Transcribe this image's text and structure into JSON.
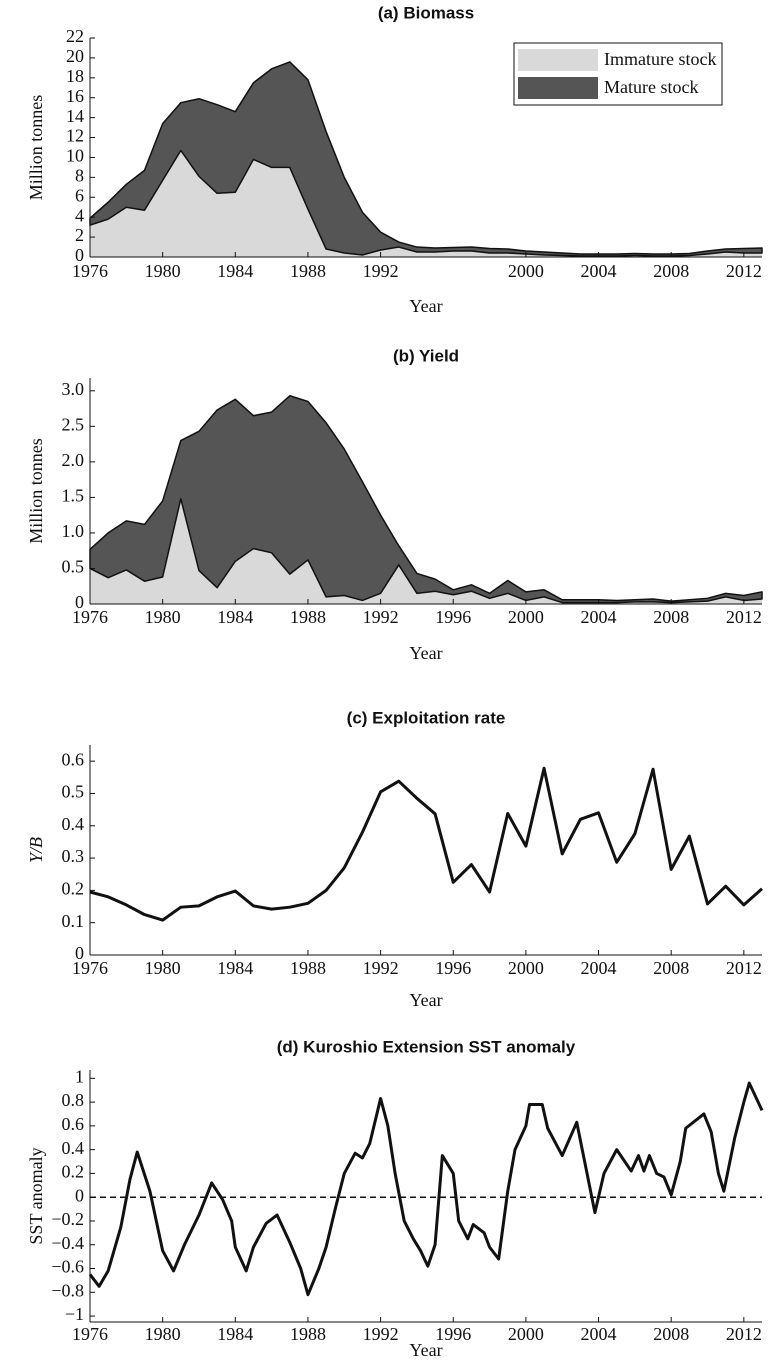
{
  "chart_data": [
    {
      "type": "stacked_area",
      "title": "(a) Biomass",
      "x_label": "Year",
      "y_label": "Million tonnes",
      "x": [
        1976,
        1977,
        1978,
        1979,
        1980,
        1981,
        1982,
        1983,
        1984,
        1985,
        1986,
        1987,
        1988,
        1989,
        1990,
        1991,
        1992,
        1993,
        1994,
        1995,
        1996,
        1997,
        1998,
        1999,
        2000,
        2001,
        2002,
        2003,
        2004,
        2005,
        2006,
        2007,
        2008,
        2009,
        2010,
        2011,
        2012,
        2013
      ],
      "series": [
        {
          "name": "Immature stock",
          "color": "#d9d9d9",
          "values": [
            3.2,
            3.8,
            5.0,
            4.7,
            7.7,
            10.7,
            8.1,
            6.4,
            6.5,
            9.8,
            9.0,
            9.0,
            4.8,
            0.8,
            0.4,
            0.2,
            0.7,
            1.0,
            0.5,
            0.5,
            0.6,
            0.6,
            0.4,
            0.4,
            0.3,
            0.2,
            0.15,
            0.1,
            0.1,
            0.1,
            0.15,
            0.1,
            0.1,
            0.15,
            0.3,
            0.5,
            0.4,
            0.4
          ]
        },
        {
          "name": "Mature stock",
          "color": "#555555",
          "values": [
            0.7,
            1.7,
            2.3,
            4.0,
            5.7,
            4.8,
            7.8,
            8.9,
            8.1,
            7.7,
            9.9,
            10.6,
            13.0,
            11.8,
            7.6,
            4.3,
            1.8,
            0.5,
            0.5,
            0.4,
            0.35,
            0.4,
            0.45,
            0.4,
            0.3,
            0.3,
            0.25,
            0.2,
            0.2,
            0.2,
            0.2,
            0.2,
            0.2,
            0.2,
            0.3,
            0.3,
            0.45,
            0.5
          ]
        }
      ],
      "xlim": [
        1976,
        2013
      ],
      "xticks": [
        1976,
        1980,
        1984,
        1988,
        1992,
        2000,
        2004,
        2008,
        2012
      ],
      "ylim": [
        0,
        22
      ],
      "yticks": [
        0,
        2,
        4,
        6,
        8,
        10,
        12,
        14,
        16,
        18,
        20,
        22
      ],
      "legend": "upper right"
    },
    {
      "type": "stacked_area",
      "title": "(b) Yield",
      "x_label": "Year",
      "y_label": "Million tonnes",
      "x": [
        1976,
        1977,
        1978,
        1979,
        1980,
        1981,
        1982,
        1983,
        1984,
        1985,
        1986,
        1987,
        1988,
        1989,
        1990,
        1991,
        1992,
        1993,
        1994,
        1995,
        1996,
        1997,
        1998,
        1999,
        2000,
        2001,
        2002,
        2003,
        2004,
        2005,
        2006,
        2007,
        2008,
        2009,
        2010,
        2011,
        2012,
        2013
      ],
      "series": [
        {
          "name": "Immature stock",
          "color": "#d9d9d9",
          "values": [
            0.5,
            0.37,
            0.48,
            0.32,
            0.38,
            1.48,
            0.47,
            0.23,
            0.6,
            0.78,
            0.72,
            0.42,
            0.62,
            0.1,
            0.12,
            0.05,
            0.15,
            0.55,
            0.15,
            0.18,
            0.13,
            0.18,
            0.08,
            0.15,
            0.05,
            0.1,
            0.02,
            0.02,
            0.02,
            0.02,
            0.03,
            0.03,
            0.02,
            0.03,
            0.04,
            0.1,
            0.05,
            0.07
          ]
        },
        {
          "name": "Mature stock",
          "color": "#555555",
          "values": [
            0.27,
            0.63,
            0.69,
            0.8,
            1.07,
            0.82,
            1.96,
            2.5,
            2.28,
            1.87,
            1.98,
            2.51,
            2.23,
            2.45,
            2.06,
            1.67,
            1.1,
            0.27,
            0.28,
            0.17,
            0.07,
            0.09,
            0.07,
            0.18,
            0.12,
            0.1,
            0.04,
            0.04,
            0.04,
            0.03,
            0.03,
            0.04,
            0.02,
            0.03,
            0.04,
            0.05,
            0.07,
            0.1
          ]
        }
      ],
      "xlim": [
        1976,
        2013
      ],
      "xticks": [
        1976,
        1980,
        1984,
        1988,
        1992,
        1996,
        2000,
        2004,
        2008,
        2012
      ],
      "ylim": [
        0,
        3.18
      ],
      "yticks": [
        0,
        0.5,
        {
          "value": 1,
          "label": "1.0"
        },
        1.5,
        {
          "value": 2,
          "label": "2.0"
        },
        2.5,
        {
          "value": 3,
          "label": "3.0"
        }
      ]
    },
    {
      "type": "line",
      "title": "(c) Exploitation rate",
      "x_label": "Year",
      "y_label": "Y/B",
      "x": [
        1976,
        1977,
        1978,
        1979,
        1980,
        1981,
        1982,
        1983,
        1984,
        1985,
        1986,
        1987,
        1988,
        1989,
        1990,
        1991,
        1992,
        1993,
        1994,
        1995,
        1996,
        1997,
        1998,
        1999,
        2000,
        2001,
        2002,
        2003,
        2004,
        2005,
        2006,
        2007,
        2008,
        2009,
        2010,
        2011,
        2012,
        2013
      ],
      "values": [
        0.195,
        0.18,
        0.155,
        0.125,
        0.108,
        0.148,
        0.152,
        0.18,
        0.198,
        0.152,
        0.142,
        0.148,
        0.16,
        0.2,
        0.27,
        0.38,
        0.505,
        0.538,
        0.485,
        0.437,
        0.225,
        0.28,
        0.195,
        0.438,
        0.337,
        0.578,
        0.313,
        0.42,
        0.44,
        0.287,
        0.375,
        0.575,
        0.265,
        0.368,
        0.158,
        0.213,
        0.155,
        0.205
      ],
      "color": "#111111",
      "xlim": [
        1976,
        2013
      ],
      "xticks": [
        1976,
        1980,
        1984,
        1988,
        1992,
        1996,
        2000,
        2004,
        2008,
        2012
      ],
      "ylim": [
        0,
        0.65
      ],
      "yticks": [
        0,
        0.1,
        0.2,
        0.3,
        0.4,
        0.5,
        0.6
      ]
    },
    {
      "type": "line",
      "title": "(d) Kuroshio Extension SST anomaly",
      "x_label": "Year",
      "y_label": "SST anomaly",
      "x": [
        1976,
        1976.5,
        1977,
        1977.7,
        1978.2,
        1978.6,
        1979.3,
        1980,
        1980.6,
        1981.2,
        1982,
        1982.7,
        1983.3,
        1983.8,
        1984,
        1984.6,
        1985,
        1985.7,
        1986.3,
        1987,
        1987.6,
        1988,
        1988.6,
        1989,
        1989.5,
        1990,
        1990.6,
        1991,
        1991.4,
        1992,
        1992.4,
        1992.8,
        1993.3,
        1993.8,
        1994.2,
        1994.6,
        1995,
        1995.4,
        1996,
        1996.3,
        1996.8,
        1997.1,
        1997.7,
        1998,
        1998.5,
        1999,
        1999.4,
        2000,
        2000.2,
        2000.9,
        2001.2,
        2002,
        2002.8,
        2003.3,
        2003.8,
        2004.3,
        2005,
        2005.8,
        2006.2,
        2006.5,
        2006.8,
        2007.2,
        2007.6,
        2008,
        2008.5,
        2008.8,
        2009.8,
        2010.2,
        2010.6,
        2010.9,
        2011.5,
        2012,
        2012.3,
        2013
      ],
      "values": [
        -0.65,
        -0.75,
        -0.62,
        -0.25,
        0.15,
        0.38,
        0.05,
        -0.45,
        -0.62,
        -0.4,
        -0.15,
        0.12,
        -0.02,
        -0.2,
        -0.42,
        -0.62,
        -0.42,
        -0.22,
        -0.15,
        -0.38,
        -0.6,
        -0.82,
        -0.6,
        -0.42,
        -0.1,
        0.2,
        0.37,
        0.33,
        0.45,
        0.83,
        0.6,
        0.2,
        -0.2,
        -0.35,
        -0.45,
        -0.58,
        -0.4,
        0.35,
        0.2,
        -0.2,
        -0.35,
        -0.23,
        -0.3,
        -0.42,
        -0.52,
        0.05,
        0.4,
        0.6,
        0.78,
        0.78,
        0.58,
        0.35,
        0.63,
        0.25,
        -0.13,
        0.2,
        0.4,
        0.22,
        0.35,
        0.22,
        0.35,
        0.2,
        0.17,
        0.02,
        0.3,
        0.58,
        0.7,
        0.55,
        0.2,
        0.05,
        0.5,
        0.8,
        0.96,
        0.73
      ],
      "color": "#111111",
      "hline": 0,
      "xlim": [
        1976,
        2013
      ],
      "xticks": [
        1976,
        1980,
        1984,
        1988,
        1992,
        1996,
        2000,
        2004,
        2008,
        2012
      ],
      "ylim": [
        -1.05,
        1.07
      ],
      "yticks": [
        {
          "value": -1,
          "label": "−1"
        },
        {
          "value": -0.8,
          "label": "−0.8"
        },
        {
          "value": -0.6,
          "label": "−0.6"
        },
        {
          "value": -0.4,
          "label": "−0.4"
        },
        {
          "value": -0.2,
          "label": "−0.2"
        },
        0,
        0.2,
        0.4,
        0.6,
        0.8,
        1
      ]
    }
  ]
}
